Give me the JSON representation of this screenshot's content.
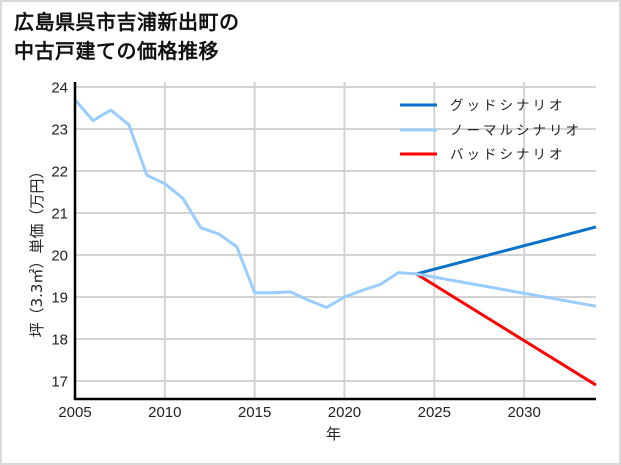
{
  "title_lines": [
    "広島県呉市吉浦新出町の",
    "中古戸建ての価格推移"
  ],
  "chart_data": {
    "type": "line",
    "title": "広島県呉市吉浦新出町の中古戸建ての価格推移",
    "xlabel": "年",
    "ylabel": "坪（3.3㎡）単価（万円）",
    "xlim": [
      2005,
      2034
    ],
    "ylim": [
      16.57,
      24.12
    ],
    "xticks": [
      2005,
      2010,
      2015,
      2020,
      2025,
      2030
    ],
    "yticks": [
      17,
      18,
      19,
      20,
      21,
      22,
      23,
      24
    ],
    "grid": true,
    "legend_position": "upper right",
    "series": [
      {
        "name": "グッドシナリオ",
        "color": "#0a72c8",
        "x": [
          2024,
          2034
        ],
        "values": [
          19.55,
          20.67
        ]
      },
      {
        "name": "ノーマルシナリオ",
        "color": "#99ccff",
        "x": [
          2005,
          2006,
          2007,
          2008,
          2009,
          2010,
          2011,
          2012,
          2013,
          2014,
          2015,
          2016,
          2017,
          2018,
          2019,
          2020,
          2021,
          2022,
          2023,
          2024,
          2034
        ],
        "values": [
          23.7,
          23.2,
          23.45,
          23.1,
          21.9,
          21.7,
          21.35,
          20.65,
          20.5,
          20.2,
          19.1,
          19.1,
          19.12,
          18.92,
          18.75,
          19.0,
          19.16,
          19.3,
          19.58,
          19.55,
          18.78
        ]
      },
      {
        "name": "バッドシナリオ",
        "color": "#ff0000",
        "x": [
          2024,
          2034
        ],
        "values": [
          19.55,
          16.9
        ]
      }
    ]
  },
  "colors": {
    "grid": "#d3d3d3",
    "axis": "#000000",
    "frame": "#d9d9d9"
  }
}
